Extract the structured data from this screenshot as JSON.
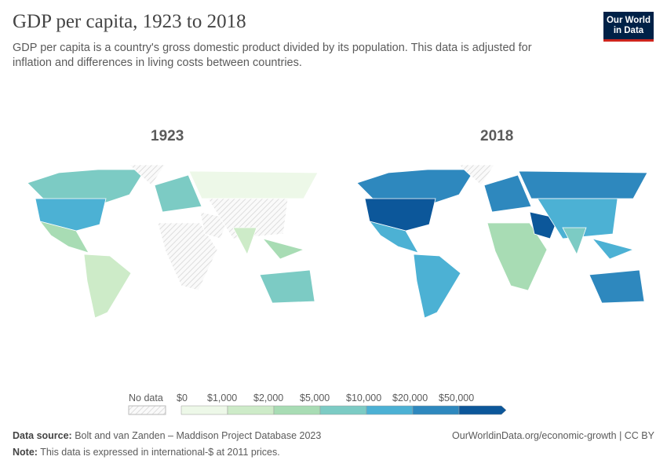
{
  "header": {
    "title": "GDP per capita, 1923 to 2018",
    "subtitle": "GDP per capita is a country's gross domestic product divided by its population. This data is adjusted for inflation and differences in living costs between countries.",
    "logo": "Our World in Data"
  },
  "maps": [
    {
      "year": "1923"
    },
    {
      "year": "2018"
    }
  ],
  "legend": {
    "no_data": "No data",
    "bins": [
      "$0",
      "$1,000",
      "$2,000",
      "$5,000",
      "$10,000",
      "$20,000",
      "$50,000"
    ],
    "colors": [
      "#edf8e8",
      "#cdebc8",
      "#a8dcb4",
      "#7ccbc4",
      "#4cb1d4",
      "#2e88be",
      "#0c579a"
    ],
    "no_data_color": "hatched"
  },
  "regions": [
    {
      "name": "Canada",
      "bin": {
        "1923": 3,
        "2018": 5
      }
    },
    {
      "name": "United States",
      "bin": {
        "1923": 4,
        "2018": 6
      }
    },
    {
      "name": "Mexico and Central America",
      "bin": {
        "1923": 2,
        "2018": 4
      }
    },
    {
      "name": "South America",
      "bin": {
        "1923": 1,
        "2018": 4
      }
    },
    {
      "name": "Greenland",
      "bin": {
        "1923": null,
        "2018": null
      }
    },
    {
      "name": "Europe",
      "bin": {
        "1923": 3,
        "2018": 5
      }
    },
    {
      "name": "Africa",
      "bin": {
        "1923": null,
        "2018": 2
      }
    },
    {
      "name": "Middle East",
      "bin": {
        "1923": null,
        "2018": 6
      }
    },
    {
      "name": "Russia",
      "bin": {
        "1923": 0,
        "2018": 5
      }
    },
    {
      "name": "China",
      "bin": {
        "1923": null,
        "2018": 4
      }
    },
    {
      "name": "India",
      "bin": {
        "1923": 1,
        "2018": 3
      }
    },
    {
      "name": "Southeast Asia",
      "bin": {
        "1923": 2,
        "2018": 4
      }
    },
    {
      "name": "Australia",
      "bin": {
        "1923": 3,
        "2018": 5
      }
    }
  ],
  "footer": {
    "source_label": "Data source:",
    "source": "Bolt and van Zanden – Maddison Project Database 2023",
    "note_label": "Note:",
    "note": "This data is expressed in international-$ at 2011 prices.",
    "url": "OurWorldinData.org/economic-growth | CC BY"
  }
}
